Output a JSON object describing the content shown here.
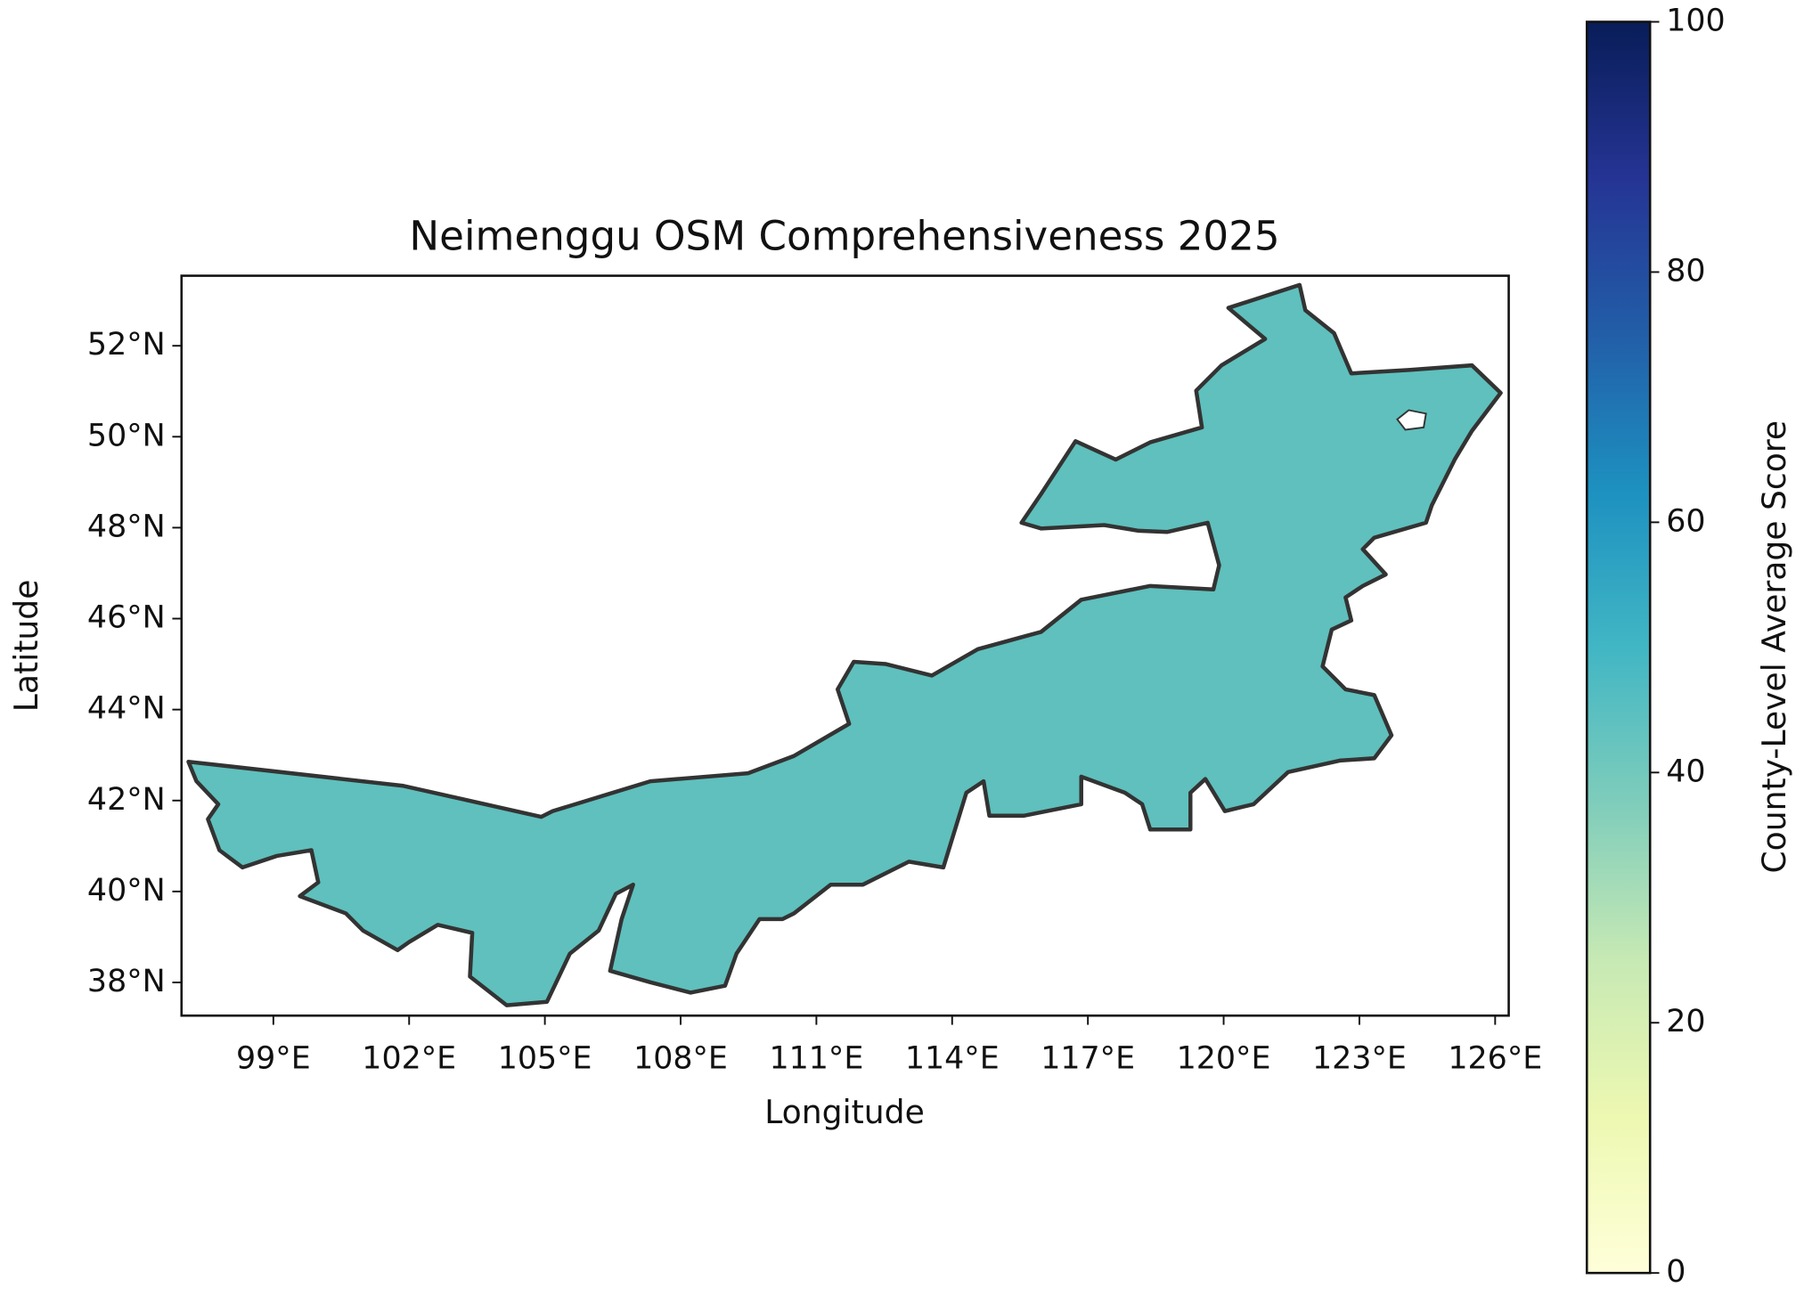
{
  "chart_data": {
    "type": "choropleth",
    "title": "Neimenggu OSM Comprehensiveness 2025",
    "xlabel": "Longitude",
    "ylabel": "Latitude",
    "xlim": [
      96.97,
      126.3
    ],
    "ylim": [
      37.27,
      53.54
    ],
    "xticks": [
      {
        "value": 99,
        "label": "99°E"
      },
      {
        "value": 102,
        "label": "102°E"
      },
      {
        "value": 105,
        "label": "105°E"
      },
      {
        "value": 108,
        "label": "108°E"
      },
      {
        "value": 111,
        "label": "111°E"
      },
      {
        "value": 114,
        "label": "114°E"
      },
      {
        "value": 117,
        "label": "117°E"
      },
      {
        "value": 120,
        "label": "120°E"
      },
      {
        "value": 123,
        "label": "123°E"
      },
      {
        "value": 126,
        "label": "126°E"
      }
    ],
    "yticks": [
      {
        "value": 38,
        "label": "38°N"
      },
      {
        "value": 40,
        "label": "40°N"
      },
      {
        "value": 42,
        "label": "42°N"
      },
      {
        "value": 44,
        "label": "44°N"
      },
      {
        "value": 46,
        "label": "46°N"
      },
      {
        "value": 48,
        "label": "48°N"
      },
      {
        "value": 50,
        "label": "50°N"
      },
      {
        "value": 52,
        "label": "52°N"
      }
    ],
    "colormap": "YlGnBu",
    "colorbar": {
      "label": "County-Level Average Score",
      "lim": [
        0,
        100
      ],
      "ticks": [
        0,
        20,
        40,
        60,
        80,
        100
      ]
    }
  }
}
